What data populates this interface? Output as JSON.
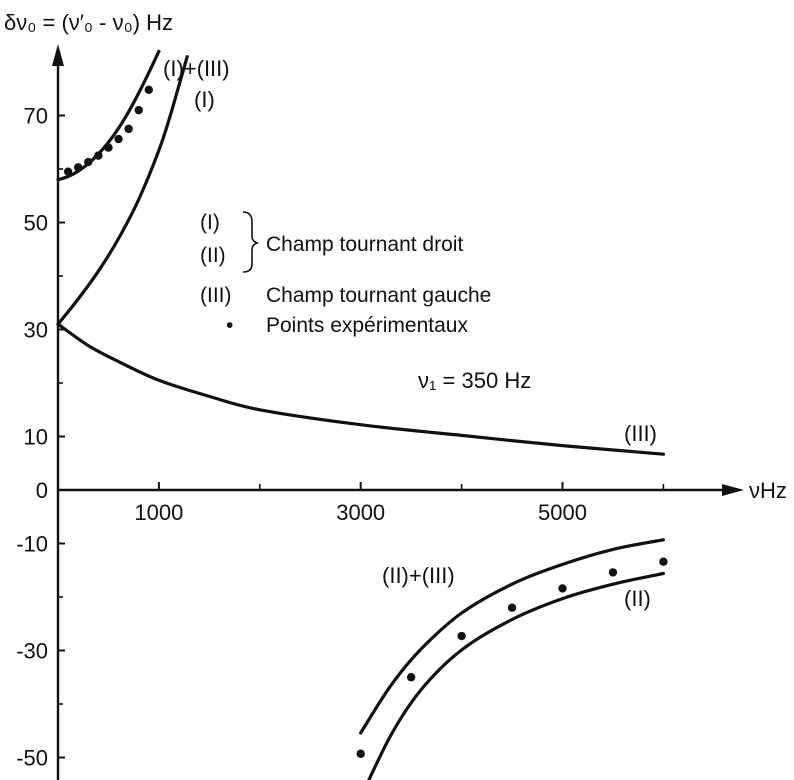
{
  "chart_data": {
    "type": "line",
    "ylabel": "δν₀ = (ν′₀ - ν₀) Hz",
    "xlabel": "νHz",
    "xlim": [
      0,
      6200
    ],
    "ylim": [
      -56,
      88
    ],
    "x_ticks": [
      {
        "value": 1000,
        "label": "1000"
      },
      {
        "value": 3000,
        "label": "3000"
      },
      {
        "value": 5000,
        "label": "5000"
      }
    ],
    "x_minor_ticks": [
      2000,
      4000,
      6000
    ],
    "y_ticks": [
      {
        "value": 70,
        "label": "70"
      },
      {
        "value": 50,
        "label": "50"
      },
      {
        "value": 30,
        "label": "30"
      },
      {
        "value": 10,
        "label": "10"
      },
      {
        "value": 0,
        "label": "0"
      },
      {
        "value": -10,
        "label": "-10"
      },
      {
        "value": -30,
        "label": "-30"
      },
      {
        "value": -50,
        "label": "-50"
      }
    ],
    "y_minor_ticks": [
      60,
      40,
      20,
      -20,
      -40
    ],
    "series": [
      {
        "name": "(I)+(III)",
        "x": [
          0,
          100,
          200,
          300,
          400,
          500,
          600,
          700,
          800,
          900,
          1000
        ],
        "y": [
          58,
          58.6,
          59.6,
          61,
          62.8,
          65,
          67.6,
          70.7,
          74.2,
          78,
          82
        ]
      },
      {
        "name": "(I)",
        "x": [
          0,
          200,
          400,
          600,
          800,
          1000,
          1100,
          1200,
          1280
        ],
        "y": [
          31,
          35.7,
          40.9,
          47,
          54.3,
          63.5,
          69.2,
          75.7,
          81
        ]
      },
      {
        "name": "(III)",
        "x": [
          0,
          300,
          600,
          1000,
          1500,
          2000,
          3000,
          4000,
          5000,
          6000
        ],
        "y": [
          31,
          27,
          24,
          20.5,
          17.5,
          15,
          12.2,
          10.2,
          8.3,
          6.7
        ]
      },
      {
        "name": "(II)+(III)",
        "x": [
          3000,
          3300,
          3600,
          4000,
          4500,
          5000,
          5500,
          6000
        ],
        "y": [
          -45.4,
          -36.5,
          -29.7,
          -23,
          -17.6,
          -13.9,
          -11.1,
          -9.3
        ]
      },
      {
        "name": "(II)",
        "x": [
          3000,
          3300,
          3600,
          4000,
          4500,
          5000,
          5500,
          6000
        ],
        "y": [
          -57.5,
          -45.8,
          -37.3,
          -29.9,
          -24.2,
          -20.3,
          -17.6,
          -15.6
        ]
      }
    ],
    "experimental_points": {
      "name": "Points expérimentaux",
      "x": [
        100,
        200,
        300,
        400,
        500,
        600,
        700,
        800,
        900,
        3000,
        3500,
        4000,
        4500,
        5000,
        5500,
        6000
      ],
      "y": [
        59.5,
        60.3,
        61.3,
        62.5,
        64,
        65.6,
        67.5,
        71,
        74.8,
        -49.3,
        -35,
        -27.3,
        -22,
        -18.4,
        -15.4,
        -13.4
      ]
    },
    "curve_labels": [
      {
        "text": "(I)+(III)",
        "anchor": "end of upper curve"
      },
      {
        "text": "(I)",
        "anchor": "end of curve I"
      },
      {
        "text": "(III)",
        "anchor": "end of curve III"
      },
      {
        "text": "(II)+(III)",
        "anchor": "near lower-left curve"
      },
      {
        "text": "(II)",
        "anchor": "near lower-right curve"
      }
    ],
    "legend": {
      "items": [
        {
          "symbol": "(I)",
          "text": ""
        },
        {
          "symbol": "(II)",
          "text": "Champ tournant droit"
        },
        {
          "symbol": "(III)",
          "text": "Champ tournant gauche"
        },
        {
          "symbol": "•",
          "text": "Points expérimentaux"
        }
      ]
    },
    "annotation": "ν₁ = 350 Hz",
    "grid": false
  }
}
